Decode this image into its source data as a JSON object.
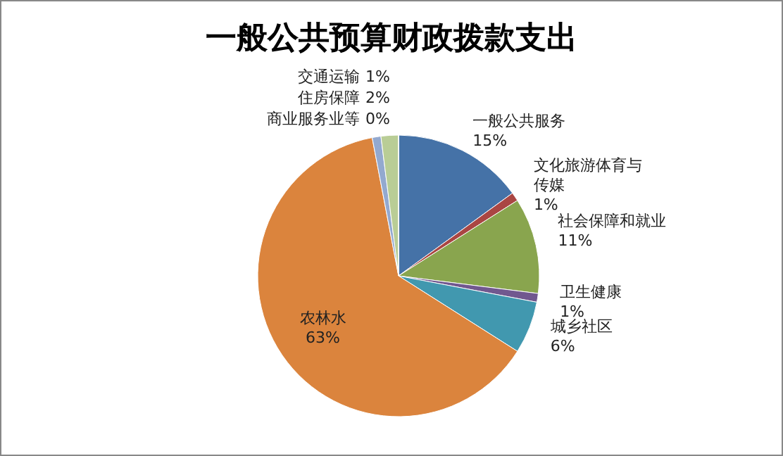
{
  "chart_data": {
    "type": "pie",
    "title": "一般公共预算财政拨款支出",
    "categories": [
      "一般公共服务",
      "文化旅游体育与传媒",
      "社会保障和就业",
      "卫生健康",
      "城乡社区",
      "农林水",
      "交通运输",
      "住房保障",
      "商业服务业等"
    ],
    "values": [
      15,
      1,
      11,
      1,
      6,
      63,
      1,
      2,
      0
    ],
    "value_labels": [
      "15%",
      "1%",
      "11%",
      "1%",
      "6%",
      "63%",
      "1%",
      "2%",
      "0%"
    ],
    "colors": [
      "#4572a7",
      "#aa4643",
      "#89a54e",
      "#71588f",
      "#4198af",
      "#db843d",
      "#93a9cf",
      "#b9cd96",
      "#a99bbd"
    ]
  }
}
